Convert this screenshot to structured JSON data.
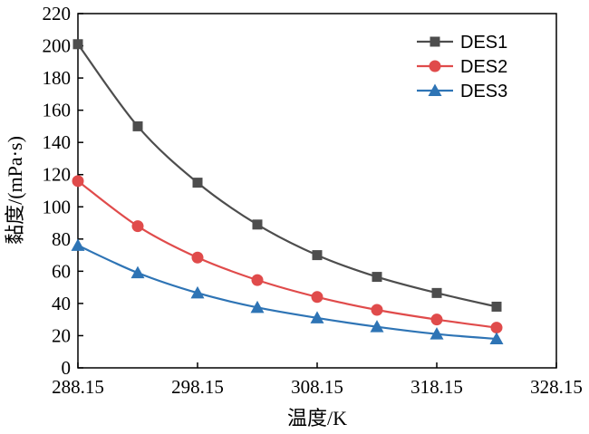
{
  "chart_data": {
    "type": "line",
    "title": "",
    "xlabel": "温度/K",
    "ylabel": "黏度/(mPa·s)",
    "xlim": [
      288.15,
      328.15
    ],
    "ylim": [
      0,
      220
    ],
    "x": [
      288.15,
      293.15,
      298.15,
      303.15,
      308.15,
      313.15,
      318.15,
      323.15
    ],
    "x_ticks": [
      288.15,
      298.15,
      308.15,
      318.15,
      328.15
    ],
    "x_tick_labels": [
      "288.15",
      "298.15",
      "308.15",
      "318.15",
      "328.15"
    ],
    "y_ticks": [
      0,
      20,
      40,
      60,
      80,
      100,
      120,
      140,
      160,
      180,
      200,
      220
    ],
    "y_tick_labels": [
      "0",
      "20",
      "40",
      "60",
      "80",
      "100",
      "120",
      "140",
      "160",
      "180",
      "200",
      "220"
    ],
    "grid": false,
    "legend_position": "top-right",
    "series": [
      {
        "name": "DES1",
        "marker": "square",
        "color": "#4d4d4d",
        "values": [
          201,
          150,
          115,
          89,
          70,
          56.5,
          46.5,
          38
        ]
      },
      {
        "name": "DES2",
        "marker": "circle",
        "color": "#e04b4b",
        "values": [
          116,
          88,
          68.5,
          54.5,
          44,
          36,
          30,
          25
        ]
      },
      {
        "name": "DES3",
        "marker": "triangle",
        "color": "#2e74b5",
        "values": [
          76,
          59,
          46.5,
          37.5,
          31,
          25.5,
          21,
          18
        ]
      }
    ]
  }
}
